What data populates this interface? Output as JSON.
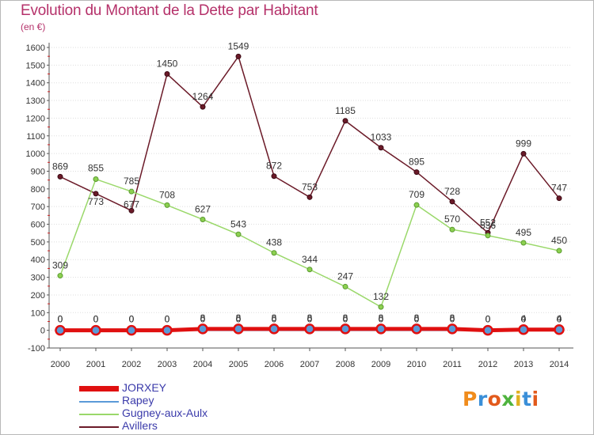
{
  "title": "Evolution du Montant de la Dette par Habitant",
  "subtitle": "(en €)",
  "logo": {
    "text": "Proxiti",
    "colors": [
      "#f08c1c",
      "#3a8fd8",
      "#e25a1c",
      "#4fb33e",
      "#e0b020",
      "#3a8fd8",
      "#e25a1c"
    ]
  },
  "chart_data": {
    "type": "line",
    "x": [
      2000,
      2001,
      2002,
      2003,
      2004,
      2005,
      2006,
      2007,
      2008,
      2009,
      2010,
      2011,
      2012,
      2013,
      2014
    ],
    "yticks": [
      -100,
      0,
      100,
      200,
      300,
      400,
      500,
      600,
      700,
      800,
      900,
      1000,
      1100,
      1200,
      1300,
      1400,
      1500,
      1600
    ],
    "ylim": [
      -100,
      1600
    ],
    "grid": "horizontal dotted",
    "legend": "bottom-left",
    "series": [
      {
        "name": "JORXEY",
        "color": "#e01010",
        "values": [
          0,
          0,
          0,
          0,
          8,
          8,
          8,
          8,
          8,
          8,
          8,
          8,
          0,
          4,
          4
        ],
        "labels": [
          "0",
          "0",
          "0",
          "0",
          "8",
          "8",
          "8",
          "8",
          "8",
          "8",
          "8",
          "8",
          "0",
          "4",
          "4"
        ]
      },
      {
        "name": "Rapey",
        "color": "#5a9ad8",
        "values": [
          0,
          0,
          0,
          0,
          0,
          0,
          0,
          0,
          0,
          0,
          0,
          0,
          0,
          0,
          0
        ],
        "labels": [
          "0",
          "0",
          "0",
          "0",
          "0",
          "0",
          "0",
          "0",
          "0",
          "0",
          "0",
          "0",
          "0",
          "0",
          "0"
        ]
      },
      {
        "name": "Gugney-aux-Aulx",
        "color": "#9ad86a",
        "values": [
          309,
          855,
          785,
          708,
          627,
          543,
          438,
          344,
          247,
          132,
          709,
          570,
          536,
          495,
          450
        ],
        "labels": [
          "309",
          "855",
          "785",
          "708",
          "627",
          "543",
          "438",
          "344",
          "247",
          "132",
          "709",
          "570",
          "536",
          "495",
          "450"
        ]
      },
      {
        "name": "Avillers",
        "color": "#6b1a28",
        "values": [
          869,
          773,
          677,
          1450,
          1264,
          1549,
          872,
          753,
          1185,
          1033,
          895,
          728,
          552,
          999,
          747
        ],
        "labels": [
          "869",
          "773",
          "677",
          "1450",
          "1264",
          "1549",
          "872",
          "753",
          "1185",
          "1033",
          "895",
          "728",
          "552",
          "999",
          "747"
        ]
      }
    ]
  }
}
